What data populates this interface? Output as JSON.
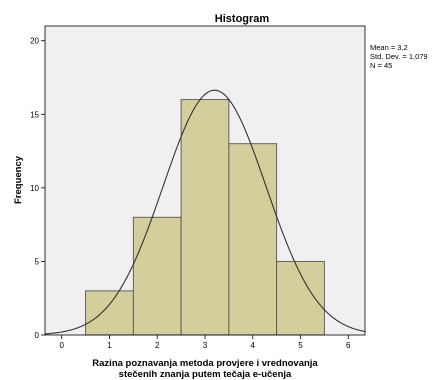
{
  "chart_data": {
    "type": "bar",
    "title": "Histogram",
    "xlabel": [
      "Razina poznavanja metoda provjere i vrednovanja",
      "stečenih znanja putem tečaja e-učenja"
    ],
    "ylabel": "Frequency",
    "bins": [
      {
        "start": 0.5,
        "end": 1.5,
        "count": 3
      },
      {
        "start": 1.5,
        "end": 2.5,
        "count": 8
      },
      {
        "start": 2.5,
        "end": 3.5,
        "count": 16
      },
      {
        "start": 3.5,
        "end": 4.5,
        "count": 13
      },
      {
        "start": 4.5,
        "end": 5.5,
        "count": 5
      }
    ],
    "xlim": [
      -0.35,
      6.35
    ],
    "ylim": [
      0,
      21
    ],
    "x_ticks": [
      0,
      1,
      2,
      3,
      4,
      5,
      6
    ],
    "y_ticks": [
      0,
      5,
      10,
      15,
      20
    ],
    "normal_curve": {
      "mean": 3.2,
      "std_dev": 1.079,
      "n": 45,
      "bin_width": 1
    },
    "stats": [
      "Mean = 3,2",
      "Std. Dev. = 1,079",
      "N = 45"
    ],
    "grid": false,
    "colors": {
      "plot_background": "#f0f0f0",
      "bar_fill": "#d3ce9c",
      "bar_stroke": "#555555",
      "curve": "#333333"
    }
  }
}
